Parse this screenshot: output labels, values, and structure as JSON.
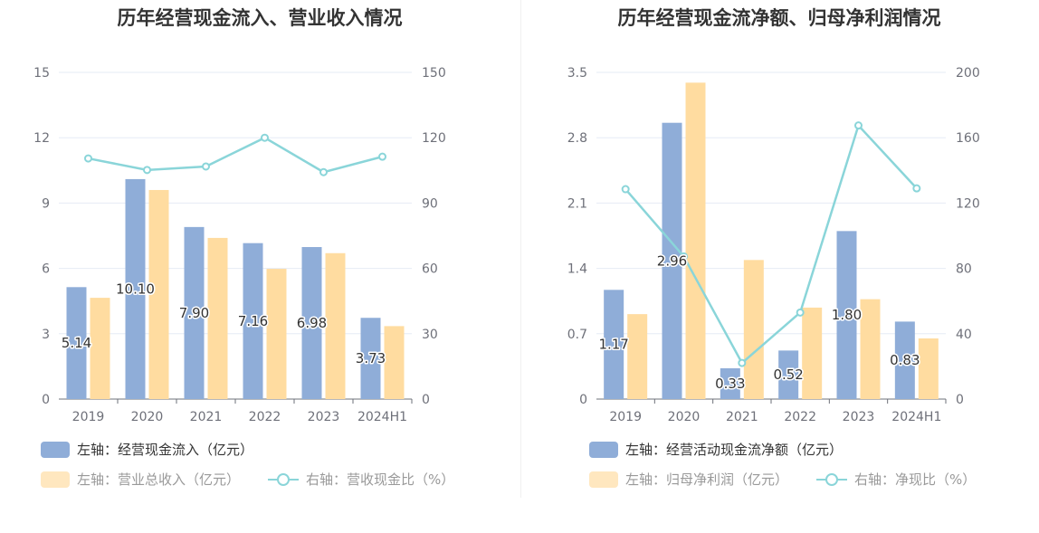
{
  "colors": {
    "bar1": "#8fadd8",
    "bar2": "#ffdca0",
    "line": "#8ad5d9",
    "grid": "#e6ebf5",
    "axis": "#6e7079"
  },
  "chart_data": [
    {
      "type": "bar",
      "title": "历年经营现金流入、营业收入情况",
      "categories": [
        "2019",
        "2020",
        "2021",
        "2022",
        "2023",
        "2024H1"
      ],
      "left_axis": {
        "ylim": [
          0,
          15
        ],
        "ticks": [
          "0",
          "3",
          "6",
          "9",
          "12",
          "15"
        ]
      },
      "right_axis": {
        "ylim": [
          0,
          150
        ],
        "ticks": [
          "0",
          "30",
          "60",
          "90",
          "120",
          "150"
        ]
      },
      "grid": true,
      "legend_position": "bottom-left",
      "series": [
        {
          "name": "左轴：经营现金流入（亿元）",
          "kind": "bar",
          "axis": "left",
          "values": [
            5.14,
            10.1,
            7.9,
            7.16,
            6.98,
            3.73
          ],
          "labels": [
            "5.14",
            "10.10",
            "7.90",
            "7.16",
            "6.98",
            "3.73"
          ]
        },
        {
          "name": "左轴：营业总收入（亿元）",
          "kind": "bar",
          "axis": "left",
          "values": [
            4.65,
            9.6,
            7.4,
            5.98,
            6.7,
            3.35
          ]
        },
        {
          "name": "右轴：营收现金比（%）",
          "kind": "line",
          "axis": "right",
          "values": [
            110.5,
            105.2,
            106.8,
            120.0,
            104.2,
            111.3
          ]
        }
      ]
    },
    {
      "type": "bar",
      "title": "历年经营现金流净额、归母净利润情况",
      "categories": [
        "2019",
        "2020",
        "2021",
        "2022",
        "2023",
        "2024H1"
      ],
      "left_axis": {
        "ylim": [
          0,
          3.5
        ],
        "ticks": [
          "0",
          "0.7",
          "1.4",
          "2.1",
          "2.8",
          "3.5"
        ]
      },
      "right_axis": {
        "ylim": [
          0,
          200
        ],
        "ticks": [
          "0",
          "40",
          "80",
          "120",
          "160",
          "200"
        ]
      },
      "grid": true,
      "legend_position": "bottom-left",
      "series": [
        {
          "name": "左轴：经营活动现金流净额（亿元）",
          "kind": "bar",
          "axis": "left",
          "values": [
            1.17,
            2.96,
            0.33,
            0.52,
            1.8,
            0.83
          ],
          "labels": [
            "1.17",
            "2.96",
            "0.33",
            "0.52",
            "1.80",
            "0.83"
          ]
        },
        {
          "name": "左轴：归母净利润（亿元）",
          "kind": "bar",
          "axis": "left",
          "values": [
            0.91,
            3.39,
            1.49,
            0.98,
            1.07,
            0.65
          ]
        },
        {
          "name": "右轴：净现比（%）",
          "kind": "line",
          "axis": "right",
          "values": [
            128.5,
            87.3,
            22.1,
            53.0,
            167.5,
            129.0
          ]
        }
      ]
    }
  ]
}
